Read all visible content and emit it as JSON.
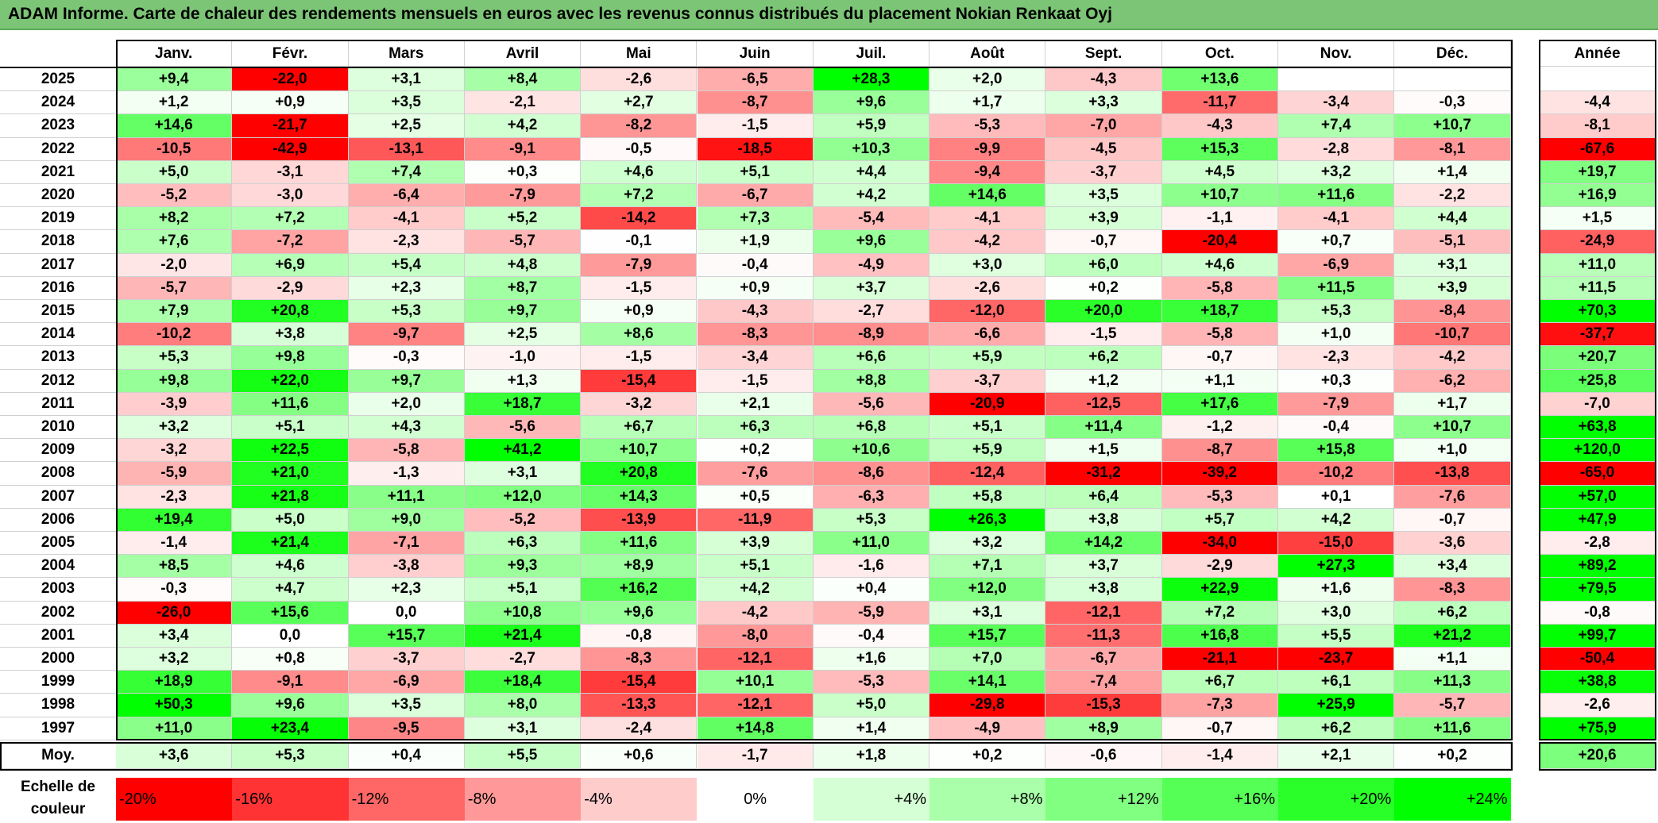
{
  "title": "ADAM Informe. Carte de chaleur des rendements mensuels en euros avec les revenus connus distribués du placement Nokian Renkaat Oyj",
  "colors": {
    "title_bg": "#7cc576",
    "neg_max": "#ff0000",
    "pos_max": "#00ff00",
    "neutral": "#ffffff"
  },
  "chart_data": {
    "type": "heatmap",
    "title": "ADAM Informe. Carte de chaleur des rendements mensuels en euros avec les revenus connus distribués du placement Nokian Renkaat Oyj",
    "months": [
      "Janv.",
      "Févr.",
      "Mars",
      "Avril",
      "Mai",
      "Juin",
      "Juil.",
      "Août",
      "Sept.",
      "Oct.",
      "Nov.",
      "Déc."
    ],
    "annual_header": "Année",
    "rows": [
      {
        "year": "2025",
        "values": [
          "+9,4",
          "-22,0",
          "+3,1",
          "+8,4",
          "-2,6",
          "-6,5",
          "+28,3",
          "+2,0",
          "-4,3",
          "+13,6",
          "",
          ""
        ],
        "annual": ""
      },
      {
        "year": "2024",
        "values": [
          "+1,2",
          "+0,9",
          "+3,5",
          "-2,1",
          "+2,7",
          "-8,7",
          "+9,6",
          "+1,7",
          "+3,3",
          "-11,7",
          "-3,4",
          "-0,3"
        ],
        "annual": "-4,4"
      },
      {
        "year": "2023",
        "values": [
          "+14,6",
          "-21,7",
          "+2,5",
          "+4,2",
          "-8,2",
          "-1,5",
          "+5,9",
          "-5,3",
          "-7,0",
          "-4,3",
          "+7,4",
          "+10,7"
        ],
        "annual": "-8,1"
      },
      {
        "year": "2022",
        "values": [
          "-10,5",
          "-42,9",
          "-13,1",
          "-9,1",
          "-0,5",
          "-18,5",
          "+10,3",
          "-9,9",
          "-4,5",
          "+15,3",
          "-2,8",
          "-8,1"
        ],
        "annual": "-67,6"
      },
      {
        "year": "2021",
        "values": [
          "+5,0",
          "-3,1",
          "+7,4",
          "+0,3",
          "+4,6",
          "+5,1",
          "+4,4",
          "-9,4",
          "-3,7",
          "+4,5",
          "+3,2",
          "+1,4"
        ],
        "annual": "+19,7"
      },
      {
        "year": "2020",
        "values": [
          "-5,2",
          "-3,0",
          "-6,4",
          "-7,9",
          "+7,2",
          "-6,7",
          "+4,2",
          "+14,6",
          "+3,5",
          "+10,7",
          "+11,6",
          "-2,2"
        ],
        "annual": "+16,9"
      },
      {
        "year": "2019",
        "values": [
          "+8,2",
          "+7,2",
          "-4,1",
          "+5,2",
          "-14,2",
          "+7,3",
          "-5,4",
          "-4,1",
          "+3,9",
          "-1,1",
          "-4,1",
          "+4,4"
        ],
        "annual": "+1,5"
      },
      {
        "year": "2018",
        "values": [
          "+7,6",
          "-7,2",
          "-2,3",
          "-5,7",
          "-0,1",
          "+1,9",
          "+9,6",
          "-4,2",
          "-0,7",
          "-20,4",
          "+0,7",
          "-5,1"
        ],
        "annual": "-24,9"
      },
      {
        "year": "2017",
        "values": [
          "-2,0",
          "+6,9",
          "+5,4",
          "+4,8",
          "-7,9",
          "-0,4",
          "-4,9",
          "+3,0",
          "+6,0",
          "+4,6",
          "-6,9",
          "+3,1"
        ],
        "annual": "+11,0"
      },
      {
        "year": "2016",
        "values": [
          "-5,7",
          "-2,9",
          "+2,3",
          "+8,7",
          "-1,5",
          "+0,9",
          "+3,7",
          "-2,6",
          "+0,2",
          "-5,8",
          "+11,5",
          "+3,9"
        ],
        "annual": "+11,5"
      },
      {
        "year": "2015",
        "values": [
          "+7,9",
          "+20,8",
          "+5,3",
          "+9,7",
          "+0,9",
          "-4,3",
          "-2,7",
          "-12,0",
          "+20,0",
          "+18,7",
          "+5,3",
          "-8,4"
        ],
        "annual": "+70,3"
      },
      {
        "year": "2014",
        "values": [
          "-10,2",
          "+3,8",
          "-9,7",
          "+2,5",
          "+8,6",
          "-8,3",
          "-8,9",
          "-6,6",
          "-1,5",
          "-5,8",
          "+1,0",
          "-10,7"
        ],
        "annual": "-37,7"
      },
      {
        "year": "2013",
        "values": [
          "+5,3",
          "+9,8",
          "-0,3",
          "-1,0",
          "-1,5",
          "-3,4",
          "+6,6",
          "+5,9",
          "+6,2",
          "-0,7",
          "-2,3",
          "-4,2"
        ],
        "annual": "+20,7"
      },
      {
        "year": "2012",
        "values": [
          "+9,8",
          "+22,0",
          "+9,7",
          "+1,3",
          "-15,4",
          "-1,5",
          "+8,8",
          "-3,7",
          "+1,2",
          "+1,1",
          "+0,3",
          "-6,2"
        ],
        "annual": "+25,8"
      },
      {
        "year": "2011",
        "values": [
          "-3,9",
          "+11,6",
          "+2,0",
          "+18,7",
          "-3,2",
          "+2,1",
          "-5,6",
          "-20,9",
          "-12,5",
          "+17,6",
          "-7,9",
          "+1,7"
        ],
        "annual": "-7,0"
      },
      {
        "year": "2010",
        "values": [
          "+3,2",
          "+5,1",
          "+4,3",
          "-5,6",
          "+6,7",
          "+6,3",
          "+6,8",
          "+5,1",
          "+11,4",
          "-1,2",
          "-0,4",
          "+10,7"
        ],
        "annual": "+63,8"
      },
      {
        "year": "2009",
        "values": [
          "-3,2",
          "+22,5",
          "-5,8",
          "+41,2",
          "+10,7",
          "+0,2",
          "+10,6",
          "+5,9",
          "+1,5",
          "-8,7",
          "+15,8",
          "+1,0"
        ],
        "annual": "+120,0"
      },
      {
        "year": "2008",
        "values": [
          "-5,9",
          "+21,0",
          "-1,3",
          "+3,1",
          "+20,8",
          "-7,6",
          "-8,6",
          "-12,4",
          "-31,2",
          "-39,2",
          "-10,2",
          "-13,8"
        ],
        "annual": "-65,0"
      },
      {
        "year": "2007",
        "values": [
          "-2,3",
          "+21,8",
          "+11,1",
          "+12,0",
          "+14,3",
          "+0,5",
          "-6,3",
          "+5,8",
          "+6,4",
          "-5,3",
          "+0,1",
          "-7,6"
        ],
        "annual": "+57,0"
      },
      {
        "year": "2006",
        "values": [
          "+19,4",
          "+5,0",
          "+9,0",
          "-5,2",
          "-13,9",
          "-11,9",
          "+5,3",
          "+26,3",
          "+3,8",
          "+5,7",
          "+4,2",
          "-0,7"
        ],
        "annual": "+47,9"
      },
      {
        "year": "2005",
        "values": [
          "-1,4",
          "+21,4",
          "-7,1",
          "+6,3",
          "+11,6",
          "+3,9",
          "+11,0",
          "+3,2",
          "+14,2",
          "-34,0",
          "-15,0",
          "-3,6"
        ],
        "annual": "-2,8"
      },
      {
        "year": "2004",
        "values": [
          "+8,5",
          "+4,6",
          "-3,8",
          "+9,3",
          "+8,9",
          "+5,1",
          "-1,6",
          "+7,1",
          "+3,7",
          "-2,9",
          "+27,3",
          "+3,4"
        ],
        "annual": "+89,2"
      },
      {
        "year": "2003",
        "values": [
          "-0,3",
          "+4,7",
          "+2,3",
          "+5,1",
          "+16,2",
          "+4,2",
          "+0,4",
          "+12,0",
          "+3,8",
          "+22,9",
          "+1,6",
          "-8,3"
        ],
        "annual": "+79,5"
      },
      {
        "year": "2002",
        "values": [
          "-26,0",
          "+15,6",
          "0,0",
          "+10,8",
          "+9,6",
          "-4,2",
          "-5,9",
          "+3,1",
          "-12,1",
          "+7,2",
          "+3,0",
          "+6,2"
        ],
        "annual": "-0,8"
      },
      {
        "year": "2001",
        "values": [
          "+3,4",
          "0,0",
          "+15,7",
          "+21,4",
          "-0,8",
          "-8,0",
          "-0,4",
          "+15,7",
          "-11,3",
          "+16,8",
          "+5,5",
          "+21,2"
        ],
        "annual": "+99,7"
      },
      {
        "year": "2000",
        "values": [
          "+3,2",
          "+0,8",
          "-3,7",
          "-2,7",
          "-8,3",
          "-12,1",
          "+1,6",
          "+7,0",
          "-6,7",
          "-21,1",
          "-23,7",
          "+1,1"
        ],
        "annual": "-50,4"
      },
      {
        "year": "1999",
        "values": [
          "+18,9",
          "-9,1",
          "-6,9",
          "+18,4",
          "-15,4",
          "+10,1",
          "-5,3",
          "+14,1",
          "-7,4",
          "+6,7",
          "+6,1",
          "+11,3"
        ],
        "annual": "+38,8"
      },
      {
        "year": "1998",
        "values": [
          "+50,3",
          "+9,6",
          "+3,5",
          "+8,0",
          "-13,3",
          "-12,1",
          "+5,0",
          "-29,8",
          "-15,3",
          "-7,3",
          "+25,9",
          "-5,7"
        ],
        "annual": "-2,6"
      },
      {
        "year": "1997",
        "values": [
          "+11,0",
          "+23,4",
          "-9,5",
          "+3,1",
          "-2,4",
          "+14,8",
          "+1,4",
          "-4,9",
          "+8,9",
          "-0,7",
          "+6,2",
          "+11,6"
        ],
        "annual": "+75,9"
      }
    ],
    "average": {
      "label": "Moy.",
      "values": [
        "+3,6",
        "+5,3",
        "+0,4",
        "+5,5",
        "+0,6",
        "-1,7",
        "+1,8",
        "+0,2",
        "-0,6",
        "-1,4",
        "+2,1",
        "+0,2"
      ],
      "annual": "+20,6"
    },
    "scale": {
      "label_line1": "Echelle de",
      "label_line2": "couleur",
      "steps": [
        "-20%",
        "-16%",
        "-12%",
        "-8%",
        "-4%",
        "0%",
        "+4%",
        "+8%",
        "+12%",
        "+16%",
        "+20%",
        "+24%"
      ]
    }
  }
}
